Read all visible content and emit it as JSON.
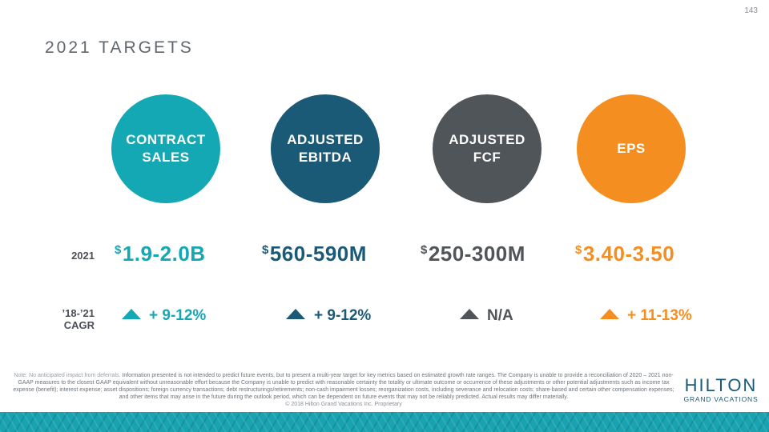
{
  "page_number": "143",
  "title": "2021 TARGETS",
  "metrics": [
    {
      "label": "CONTRACT\nSALES",
      "value": "1.9-2.0B",
      "cagr": "+ 9-12%",
      "color": "#13a8b4"
    },
    {
      "label": "ADJUSTED\nEBITDA",
      "value": "560-590M",
      "cagr": "+ 9-12%",
      "color": "#1a5a77"
    },
    {
      "label": "ADJUSTED\nFCF",
      "value": "250-300M",
      "cagr": "N/A",
      "color": "#505559"
    },
    {
      "label": "EPS",
      "value": "3.40-3.50",
      "cagr": "+ 11-13%",
      "color": "#f58e20"
    }
  ],
  "currency_symbol": "$",
  "row_labels": {
    "year": "2021",
    "cagr": "’18-’21 CAGR"
  },
  "footnote": {
    "lead": "Note: No anticipated impact from deferrals.",
    "body": " Information presented is not intended to predict future events, but to present a multi-year target for key metrics based on estimated growth rate ranges. The Company is unable to provide a reconciliation of 2020 – 2021 non-GAAP measures to the closest GAAP equivalent without unreasonable effort because the Company is unable to predict with reasonable certainty the totality or ultimate outcome or occurrence of these adjustments or other potential adjustments such as income tax expense (benefit); interest expense; asset dispositions; foreign currency transactions; debt restructurings/retirements; non-cash impairment losses; reorganization costs, including severance and relocation costs; share-based and certain other compensation expenses; and other items that may arise in the future during the outlook period, which can be dependent on future events that may not be reliably predicted. Actual results may differ materially.",
    "copyright": "© 2018 Hilton Grand Vacations Inc. Proprietary"
  },
  "logo": {
    "main": "HILTON",
    "sub": "GRAND VACATIONS"
  }
}
